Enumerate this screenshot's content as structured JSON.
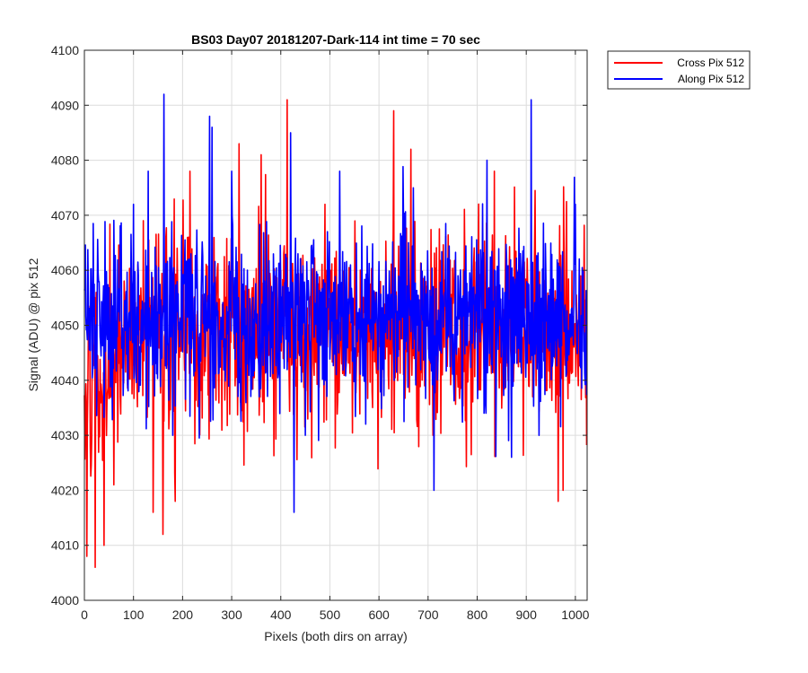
{
  "chart_data": {
    "type": "line",
    "title": "BS03 Day07 20181207-Dark-114 int time = 70 sec",
    "xlabel": "Pixels (both dirs on array)",
    "ylabel": "Signal (ADU) @ pix 512",
    "xlim": [
      0,
      1024
    ],
    "ylim": [
      4000,
      4100
    ],
    "xticks": [
      0,
      100,
      200,
      300,
      400,
      500,
      600,
      700,
      800,
      900,
      1000
    ],
    "yticks": [
      4000,
      4010,
      4020,
      4030,
      4040,
      4050,
      4060,
      4070,
      4080,
      4090,
      4100
    ],
    "grid": true,
    "legend_position": "outside-top-right",
    "series": [
      {
        "name": "Cross Pix 512",
        "color": "#ff0000",
        "x_range": [
          0,
          1023
        ],
        "mean": 4049,
        "early_mean": 4038,
        "spread": 9,
        "notable_points": [
          {
            "x": 5,
            "y": 4008
          },
          {
            "x": 12,
            "y": 4028
          },
          {
            "x": 22,
            "y": 4006
          },
          {
            "x": 40,
            "y": 4010
          },
          {
            "x": 60,
            "y": 4021
          },
          {
            "x": 140,
            "y": 4016
          },
          {
            "x": 160,
            "y": 4012
          },
          {
            "x": 185,
            "y": 4018
          },
          {
            "x": 215,
            "y": 4078
          },
          {
            "x": 315,
            "y": 4083
          },
          {
            "x": 360,
            "y": 4081
          },
          {
            "x": 413,
            "y": 4091
          },
          {
            "x": 490,
            "y": 4072
          },
          {
            "x": 630,
            "y": 4089
          },
          {
            "x": 665,
            "y": 4082
          },
          {
            "x": 710,
            "y": 4030
          },
          {
            "x": 835,
            "y": 4078
          },
          {
            "x": 965,
            "y": 4018
          },
          {
            "x": 975,
            "y": 4020
          }
        ]
      },
      {
        "name": "Along Pix 512",
        "color": "#0000ff",
        "x_range": [
          0,
          1023
        ],
        "mean": 4051,
        "early_mean": 4050,
        "spread": 8,
        "notable_points": [
          {
            "x": 100,
            "y": 4072
          },
          {
            "x": 130,
            "y": 4078
          },
          {
            "x": 162,
            "y": 4092
          },
          {
            "x": 180,
            "y": 4030
          },
          {
            "x": 255,
            "y": 4088
          },
          {
            "x": 260,
            "y": 4086
          },
          {
            "x": 300,
            "y": 4078
          },
          {
            "x": 420,
            "y": 4085
          },
          {
            "x": 427,
            "y": 4016
          },
          {
            "x": 450,
            "y": 4030
          },
          {
            "x": 520,
            "y": 4078
          },
          {
            "x": 670,
            "y": 4075
          },
          {
            "x": 712,
            "y": 4020
          },
          {
            "x": 820,
            "y": 4080
          },
          {
            "x": 870,
            "y": 4026
          },
          {
            "x": 910,
            "y": 4091
          },
          {
            "x": 1000,
            "y": 4072
          }
        ]
      }
    ]
  }
}
